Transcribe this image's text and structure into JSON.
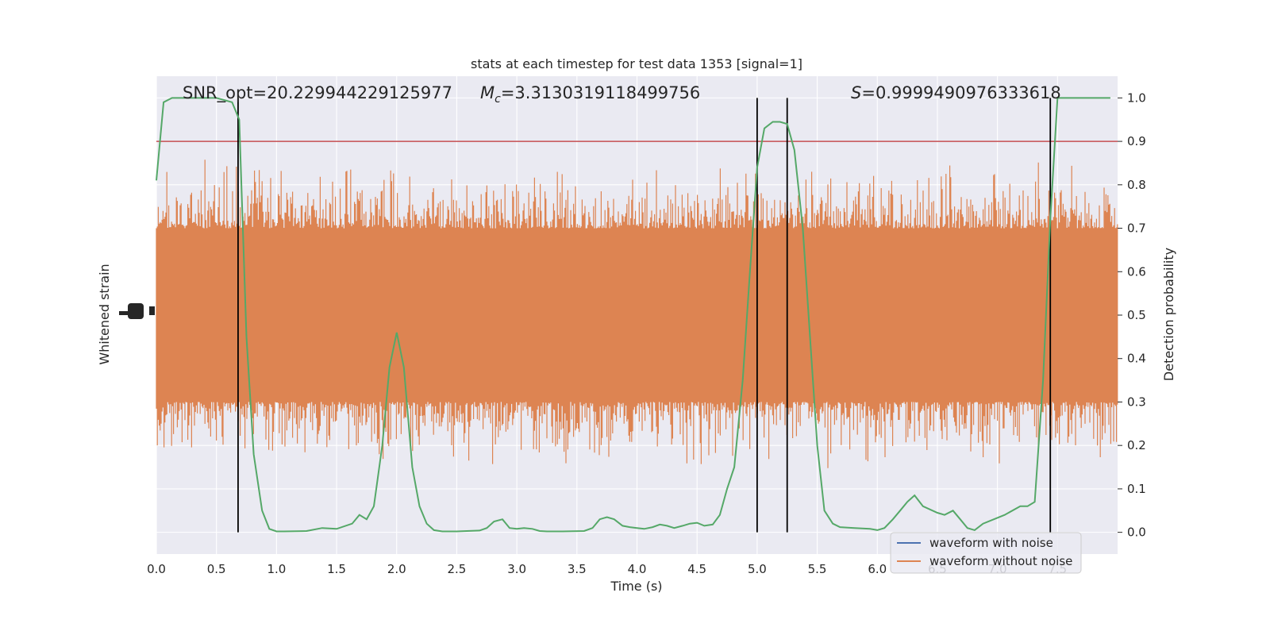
{
  "chart_data": {
    "type": "line",
    "title": "stats at each timestep for test data 1353 [signal=1]",
    "xlabel": "Time (s)",
    "ylabel_left": "Whitened strain",
    "ylabel_right": "Detection probability",
    "xlim": [
      0.0,
      8.0
    ],
    "ylim_right": [
      -0.05,
      1.05
    ],
    "x_ticks": [
      "0.0",
      "0.5",
      "1.0",
      "1.5",
      "2.0",
      "2.5",
      "3.0",
      "3.5",
      "4.0",
      "4.5",
      "5.0",
      "5.5",
      "6.0",
      "6.5",
      "7.0",
      "7.5"
    ],
    "x_tick_values": [
      0.0,
      0.5,
      1.0,
      1.5,
      2.0,
      2.5,
      3.0,
      3.5,
      4.0,
      4.5,
      5.0,
      5.5,
      6.0,
      6.5,
      7.0,
      7.5
    ],
    "y_ticks_right": [
      "0.0",
      "0.1",
      "0.2",
      "0.3",
      "0.4",
      "0.5",
      "0.6",
      "0.7",
      "0.8",
      "0.9",
      "1.0"
    ],
    "y_tick_values_right": [
      0.0,
      0.1,
      0.2,
      0.3,
      0.4,
      0.5,
      0.6,
      0.7,
      0.8,
      0.9,
      1.0
    ],
    "grid": true,
    "background": "#eaeaf2",
    "annotations": {
      "snr": "SNR_opt=20.229944229125977",
      "mc_symbol": "M",
      "mc_sub": "c",
      "mc_value": "=3.3130319118499756",
      "s_symbol": "S",
      "s_value": "=0.9999490976333618"
    },
    "legend": {
      "placement": "lower-right",
      "entries": [
        {
          "label": "waveform with noise",
          "color": "#4c72b0"
        },
        {
          "label": "waveform without noise",
          "color": "#dd8452"
        }
      ]
    },
    "threshold": {
      "y": 0.9,
      "color": "#c44e52"
    },
    "vlines": {
      "x": [
        0.68,
        5.0,
        5.25,
        7.44
      ],
      "color": "#000000"
    },
    "noise_band": {
      "low": 0.3,
      "high": 0.7,
      "spike_min": 0.0,
      "spike_max": 1.0,
      "color": "#dd8452"
    },
    "series": [
      {
        "name": "Detection probability",
        "color": "#55a868",
        "x": [
          0.0,
          0.06,
          0.13,
          0.25,
          0.38,
          0.5,
          0.63,
          0.69,
          0.75,
          0.81,
          0.88,
          0.94,
          1.0,
          1.06,
          1.25,
          1.38,
          1.5,
          1.63,
          1.69,
          1.75,
          1.81,
          1.88,
          1.94,
          2.0,
          2.06,
          2.13,
          2.19,
          2.25,
          2.31,
          2.38,
          2.5,
          2.69,
          2.75,
          2.81,
          2.88,
          2.94,
          3.0,
          3.06,
          3.13,
          3.19,
          3.25,
          3.38,
          3.56,
          3.63,
          3.69,
          3.75,
          3.81,
          3.88,
          3.94,
          4.0,
          4.06,
          4.13,
          4.19,
          4.25,
          4.31,
          4.38,
          4.44,
          4.5,
          4.56,
          4.63,
          4.69,
          4.75,
          4.81,
          4.88,
          4.94,
          5.0,
          5.06,
          5.13,
          5.19,
          5.25,
          5.31,
          5.38,
          5.44,
          5.5,
          5.56,
          5.63,
          5.69,
          5.81,
          5.94,
          6.0,
          6.06,
          6.13,
          6.19,
          6.25,
          6.31,
          6.38,
          6.5,
          6.56,
          6.63,
          6.69,
          6.75,
          6.81,
          6.88,
          7.06,
          7.19,
          7.25,
          7.31,
          7.38,
          7.44,
          7.5,
          7.56,
          7.69,
          7.81,
          7.94
        ],
        "values": [
          0.81,
          0.99,
          1.0,
          1.0,
          1.0,
          1.0,
          0.99,
          0.95,
          0.45,
          0.18,
          0.05,
          0.008,
          0.002,
          0.002,
          0.003,
          0.01,
          0.008,
          0.02,
          0.04,
          0.03,
          0.06,
          0.2,
          0.38,
          0.46,
          0.38,
          0.15,
          0.06,
          0.02,
          0.005,
          0.002,
          0.002,
          0.004,
          0.01,
          0.025,
          0.03,
          0.01,
          0.008,
          0.01,
          0.008,
          0.003,
          0.002,
          0.002,
          0.003,
          0.01,
          0.03,
          0.035,
          0.03,
          0.015,
          0.012,
          0.01,
          0.008,
          0.012,
          0.018,
          0.015,
          0.01,
          0.015,
          0.02,
          0.022,
          0.015,
          0.018,
          0.04,
          0.1,
          0.15,
          0.35,
          0.6,
          0.84,
          0.93,
          0.945,
          0.945,
          0.94,
          0.88,
          0.7,
          0.45,
          0.2,
          0.05,
          0.02,
          0.012,
          0.01,
          0.008,
          0.005,
          0.01,
          0.03,
          0.05,
          0.07,
          0.085,
          0.06,
          0.045,
          0.04,
          0.05,
          0.03,
          0.01,
          0.005,
          0.02,
          0.04,
          0.06,
          0.06,
          0.07,
          0.35,
          0.72,
          1.0,
          1.0,
          1.0,
          1.0,
          1.0
        ]
      }
    ]
  }
}
